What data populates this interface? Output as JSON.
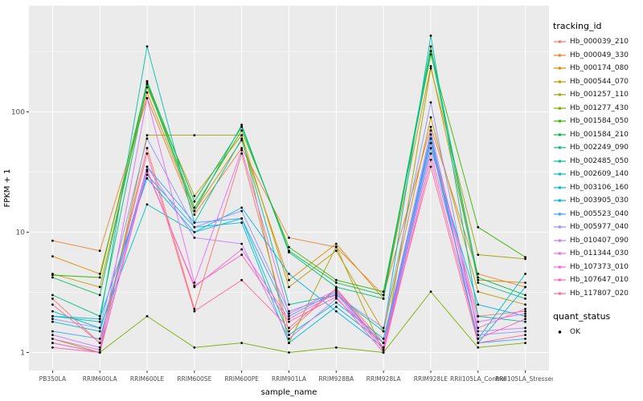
{
  "figure": {
    "background": "#FFFFFF",
    "panel_background": "#EBEBEB",
    "grid_color": "#FFFFFF",
    "tick_color": "#333333",
    "label_color": "#4D4D4D",
    "title_color": "#000000",
    "point_color": "#000000"
  },
  "chart_data": {
    "type": "line",
    "title": "",
    "xlabel": "sample_name",
    "ylabel": "FPKM + 1",
    "y_scale": "log10",
    "y_ticks": [
      1,
      10,
      100
    ],
    "y_minor": [
      3.162,
      31.62,
      316.2
    ],
    "ylim": [
      0.7,
      600
    ],
    "legend_position": "right",
    "grid": true,
    "categories": [
      "PB350LA",
      "RRIM600LA",
      "RRIM600LE",
      "RRIM600SE",
      "RRIM600PE",
      "RRIM901LA",
      "RRIM928BA",
      "RRIM928LA",
      "RRIM928LE",
      "RRII105LA_Control",
      "RRII105LA_Stressed"
    ],
    "series": [
      {
        "name": "Hb_000039_210",
        "color": "#F8766D",
        "values": [
          2.8,
          1.2,
          50,
          2.3,
          45,
          1.5,
          3.4,
          1.2,
          60,
          2.0,
          2.2
        ]
      },
      {
        "name": "Hb_000049_330",
        "color": "#EA8331",
        "values": [
          8.5,
          7.0,
          130,
          14,
          50,
          9.0,
          7.5,
          3.0,
          75,
          4.5,
          3.5
        ]
      },
      {
        "name": "Hb_000174_080",
        "color": "#D89000",
        "values": [
          6.3,
          4.5,
          145,
          15,
          58,
          4.0,
          8.0,
          2.8,
          240,
          4.0,
          3.8
        ]
      },
      {
        "name": "Hb_000544_070",
        "color": "#C09B00",
        "values": [
          4.5,
          3.5,
          160,
          20,
          64,
          3.5,
          7.0,
          1.5,
          90,
          3.2,
          2.5
        ]
      },
      {
        "name": "Hb_001257_110",
        "color": "#A3A500",
        "values": [
          1.3,
          1.0,
          64,
          64,
          64,
          1.2,
          7.6,
          1.0,
          230,
          6.5,
          6.0
        ]
      },
      {
        "name": "Hb_001277_430",
        "color": "#7CAE00",
        "values": [
          1.2,
          1.0,
          2.0,
          1.1,
          1.2,
          1.0,
          1.1,
          1.0,
          3.2,
          1.1,
          1.2
        ]
      },
      {
        "name": "Hb_001584_050",
        "color": "#39B600",
        "values": [
          4.4,
          4.2,
          175,
          16,
          70,
          7.5,
          4.0,
          3.2,
          300,
          11,
          6.2
        ]
      },
      {
        "name": "Hb_001584_210",
        "color": "#00BB4E",
        "values": [
          4.2,
          3.0,
          180,
          18,
          75,
          7.0,
          3.8,
          3.0,
          350,
          4.2,
          3.0
        ]
      },
      {
        "name": "Hb_002249_090",
        "color": "#00BF7D",
        "values": [
          3.0,
          2.0,
          170,
          15,
          78,
          6.8,
          3.5,
          2.8,
          320,
          3.8,
          2.8
        ]
      },
      {
        "name": "Hb_002485_050",
        "color": "#00C1A3",
        "values": [
          2.0,
          1.8,
          350,
          12,
          60,
          2.5,
          3.0,
          1.5,
          430,
          2.0,
          1.8
        ]
      },
      {
        "name": "Hb_002609_140",
        "color": "#00BFC4",
        "values": [
          2.2,
          1.6,
          17,
          10,
          13,
          1.4,
          2.6,
          1.3,
          55,
          1.3,
          4.5
        ]
      },
      {
        "name": "Hb_003106_160",
        "color": "#00BAE0",
        "values": [
          1.8,
          1.5,
          30,
          11,
          12,
          1.2,
          2.4,
          1.2,
          60,
          1.2,
          3.5
        ]
      },
      {
        "name": "Hb_003905_030",
        "color": "#00B0F6",
        "values": [
          2.0,
          1.9,
          28,
          10,
          16,
          4.5,
          2.2,
          1.1,
          50,
          2.5,
          2.0
        ]
      },
      {
        "name": "Hb_005523_040",
        "color": "#35A2FF",
        "values": [
          1.5,
          1.3,
          35,
          12,
          13,
          2.0,
          3.2,
          1.1,
          65,
          1.2,
          1.3
        ]
      },
      {
        "name": "Hb_005977_040",
        "color": "#9590FF",
        "values": [
          1.9,
          1.6,
          60,
          11,
          15,
          2.2,
          3.0,
          1.6,
          120,
          1.4,
          1.5
        ]
      },
      {
        "name": "Hb_010407_090",
        "color": "#C77CFF",
        "values": [
          1.4,
          1.1,
          35,
          9.0,
          8.0,
          1.3,
          2.8,
          1.2,
          70,
          1.5,
          1.6
        ]
      },
      {
        "name": "Hb_011344_030",
        "color": "#E76BF3",
        "values": [
          1.3,
          1.05,
          130,
          3.8,
          48,
          2.1,
          3.3,
          1.1,
          55,
          1.8,
          2.1
        ]
      },
      {
        "name": "Hb_107373_010",
        "color": "#FA62DB",
        "values": [
          1.2,
          1.0,
          33,
          3.5,
          7.2,
          1.9,
          3.1,
          1.05,
          45,
          1.6,
          2.3
        ]
      },
      {
        "name": "Hb_107647_010",
        "color": "#FF62BC",
        "values": [
          1.1,
          1.0,
          32,
          3.6,
          6.5,
          1.8,
          2.9,
          1.0,
          40,
          1.3,
          1.9
        ]
      },
      {
        "name": "Hb_117807_020",
        "color": "#FF6A98",
        "values": [
          2.5,
          1.2,
          45,
          2.2,
          4.0,
          1.6,
          3.4,
          1.1,
          35,
          1.2,
          1.4
        ]
      }
    ],
    "legend": {
      "color_title": "tracking_id",
      "shape_title": "quant_status",
      "shape_items": [
        {
          "label": "OK"
        }
      ]
    }
  }
}
